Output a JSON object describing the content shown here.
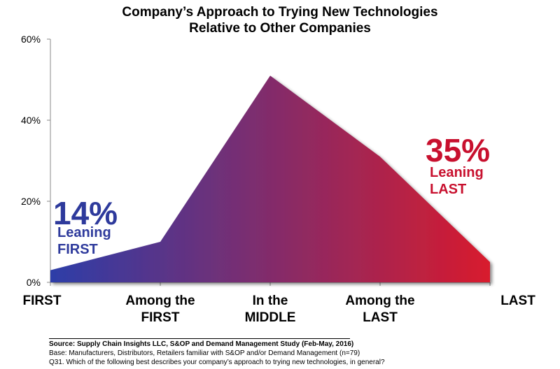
{
  "chart_data": {
    "type": "area",
    "title": "Company’s Approach to Trying New Technologies",
    "subtitle": "Relative to Other Companies",
    "categories": [
      {
        "line1": "FIRST",
        "line2": ""
      },
      {
        "line1": "Among the",
        "line2": "FIRST"
      },
      {
        "line1": "In the",
        "line2": "MIDDLE"
      },
      {
        "line1": "Among the",
        "line2": "LAST"
      },
      {
        "line1": "LAST",
        "line2": ""
      }
    ],
    "values": [
      3,
      10,
      51,
      31,
      5
    ],
    "ylim": [
      0,
      60
    ],
    "yticks": [
      "0%",
      "20%",
      "40%",
      "60%"
    ],
    "ytick_values": [
      0,
      20,
      40,
      60
    ],
    "gradient": {
      "start": "#2d3da8",
      "end": "#d81b2d"
    },
    "annotations": {
      "first": {
        "big": "14%",
        "line1": "Leaning",
        "line2": "FIRST",
        "color": "#2e3a9c"
      },
      "last": {
        "big": "35%",
        "line1": "Leaning",
        "line2": "LAST",
        "color": "#c8102e"
      }
    }
  },
  "source": {
    "line1": "Source:  Supply Chain Insights LLC, S&OP and Demand Management Study (Feb-May, 2016)",
    "line2": "Base: Manufacturers, Distributors, Retailers familiar with S&OP and/or Demand Management (n=79)",
    "line3": "Q31. Which of the following best describes your company’s approach to trying new technologies, in general?"
  }
}
